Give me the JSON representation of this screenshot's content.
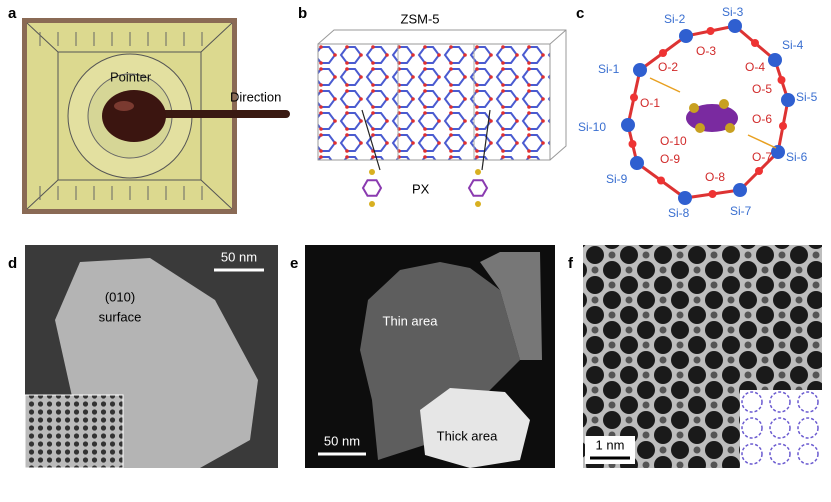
{
  "panels": [
    {
      "label": "a",
      "texts": [
        "Pointer",
        "Direction"
      ]
    },
    {
      "label": "b",
      "title": "ZSM-5",
      "texts": [
        "PX"
      ]
    },
    {
      "label": "c",
      "silicon": [
        "Si-1",
        "Si-2",
        "Si-3",
        "Si-4",
        "Si-5",
        "Si-6",
        "Si-7",
        "Si-8",
        "Si-9",
        "Si-10"
      ],
      "oxygen": [
        "O-1",
        "O-2",
        "O-3",
        "O-4",
        "O-5",
        "O-6",
        "O-7",
        "O-8",
        "O-9",
        "O-10"
      ]
    },
    {
      "label": "d",
      "scale_bar": "50 nm",
      "texts": [
        "(010)",
        "surface"
      ]
    },
    {
      "label": "e",
      "scale_bar": "50 nm",
      "texts": [
        "Thin area",
        "Thick area"
      ]
    },
    {
      "label": "f",
      "scale_bar": "1 nm"
    }
  ]
}
